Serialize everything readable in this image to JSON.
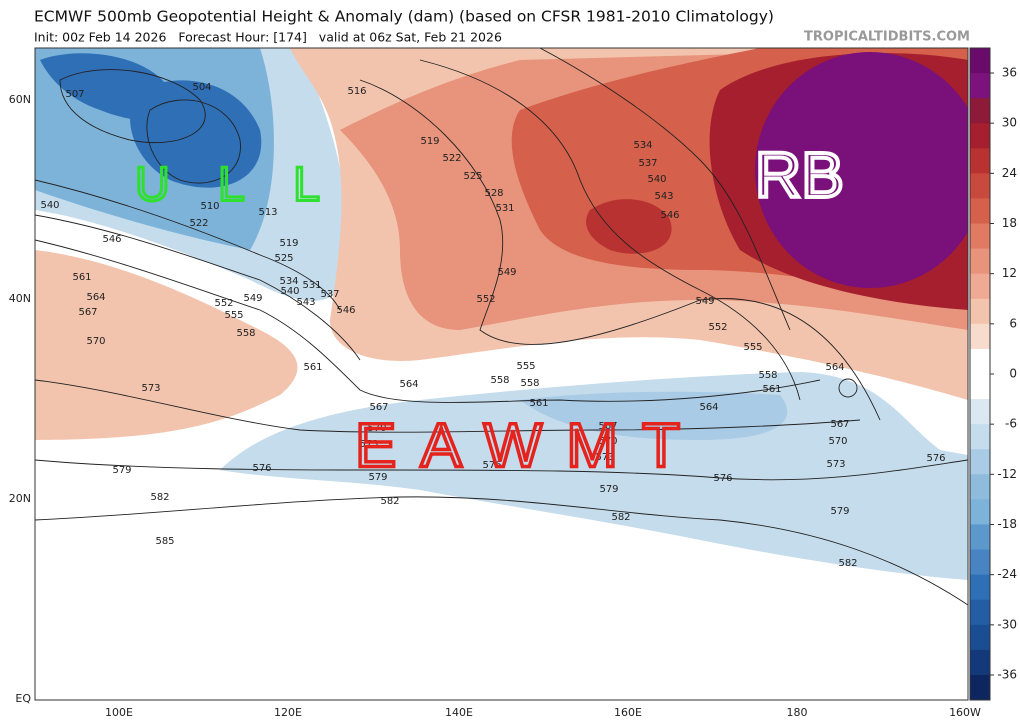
{
  "title": "ECMWF 500mb Geopotential Height & Anomaly (dam) (based on CFSR 1981-2010 Climatology)",
  "subtitle": "Init: 00z Feb 14 2026   Forecast Hour: [174]   valid at 06z Sat, Feb 21 2026",
  "watermark": "TROPICALTIDBITS.COM",
  "lat_labels": [
    "60N",
    "40N",
    "20N",
    "EQ"
  ],
  "lon_labels": [
    "100E",
    "120E",
    "140E",
    "160E",
    "180",
    "160W"
  ],
  "colorbar_ticks": [
    36,
    30,
    24,
    18,
    12,
    6,
    0,
    -6,
    -12,
    -18,
    -24,
    -30,
    -36
  ],
  "contour_labels": [
    507,
    504,
    516,
    519,
    522,
    525,
    528,
    531,
    534,
    537,
    540,
    543,
    546,
    549,
    552,
    549,
    552,
    555,
    558,
    561,
    564,
    567,
    570,
    573,
    576,
    579,
    582,
    540,
    546,
    561,
    564,
    567,
    570,
    573,
    579,
    582,
    585,
    510,
    513,
    519,
    522,
    525,
    534,
    531,
    537,
    540,
    543,
    546,
    552,
    555,
    558,
    549,
    561,
    564,
    567,
    570,
    573,
    576,
    579,
    582,
    555,
    558,
    561,
    564,
    567,
    570,
    573,
    576,
    579,
    582,
    576,
    558
  ],
  "annotations": {
    "rb": "RB",
    "eawmt": "EAWMT",
    "ull": "ULL"
  }
}
